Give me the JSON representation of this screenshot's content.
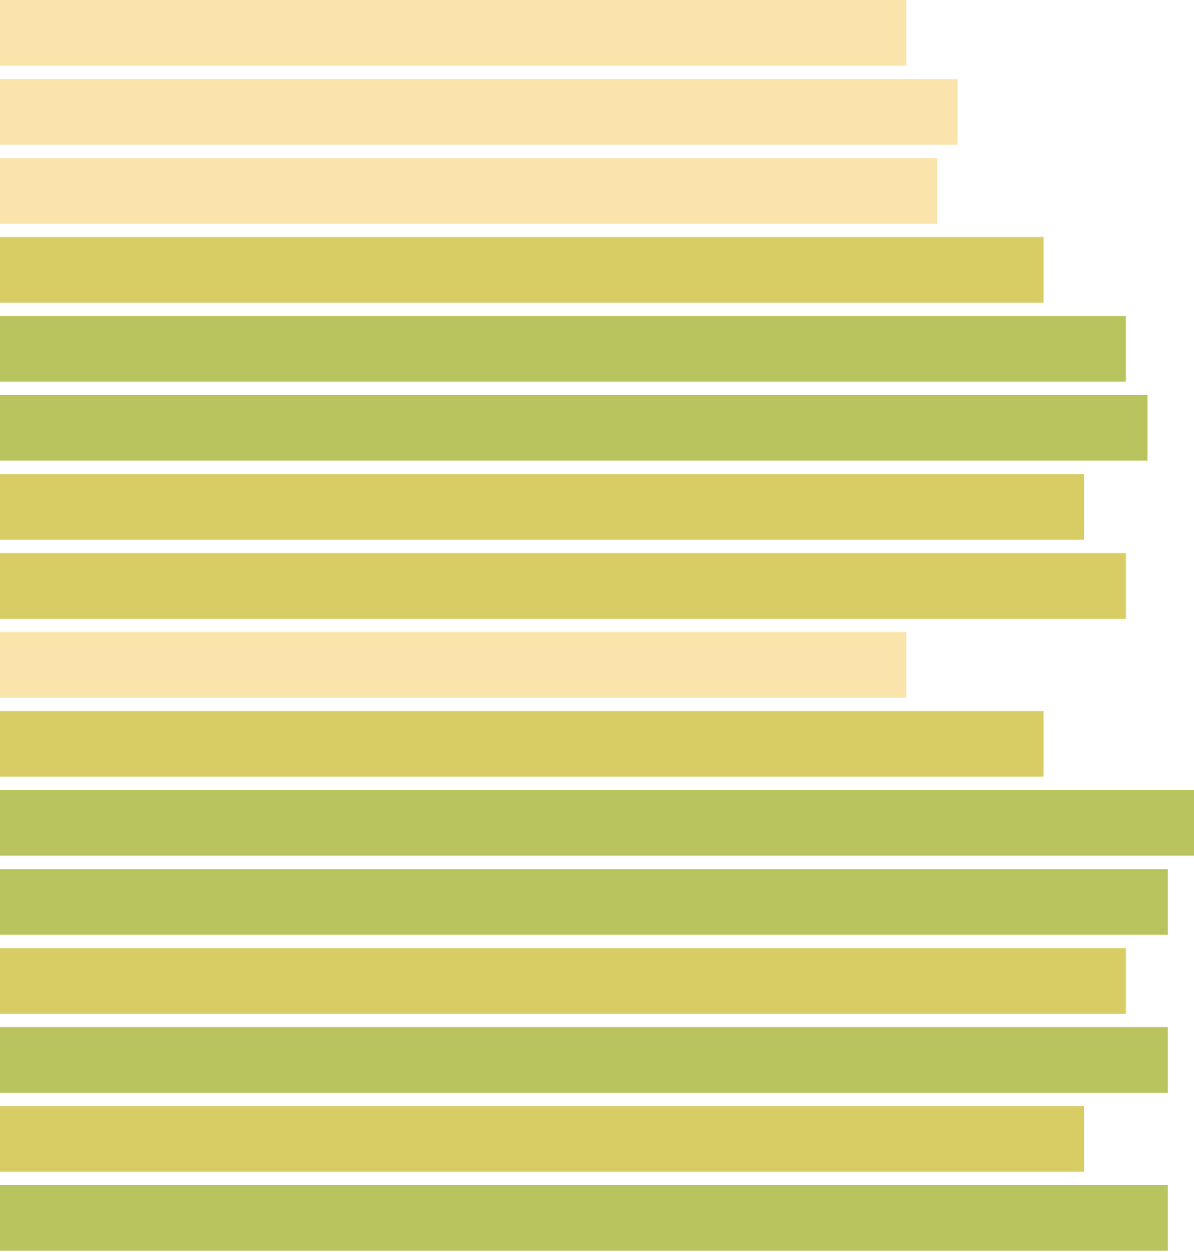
{
  "chart_data": {
    "type": "bar",
    "orientation": "horizontal",
    "title": "",
    "xlabel": "",
    "ylabel": "",
    "xlim": [
      0,
      100
    ],
    "grid": false,
    "legend": "none",
    "values": [
      75.9,
      80.2,
      78.5,
      87.4,
      94.3,
      96.1,
      90.8,
      94.3,
      75.9,
      87.4,
      100.0,
      97.8,
      94.3,
      97.8,
      90.8,
      97.8
    ],
    "color_levels": [
      0,
      0,
      0,
      1,
      2,
      2,
      1,
      1,
      0,
      1,
      2,
      2,
      1,
      2,
      1,
      2
    ]
  },
  "palette": [
    "#fbe4ab",
    "#d8cd64",
    "#bac45e"
  ],
  "background": "#ffffff"
}
